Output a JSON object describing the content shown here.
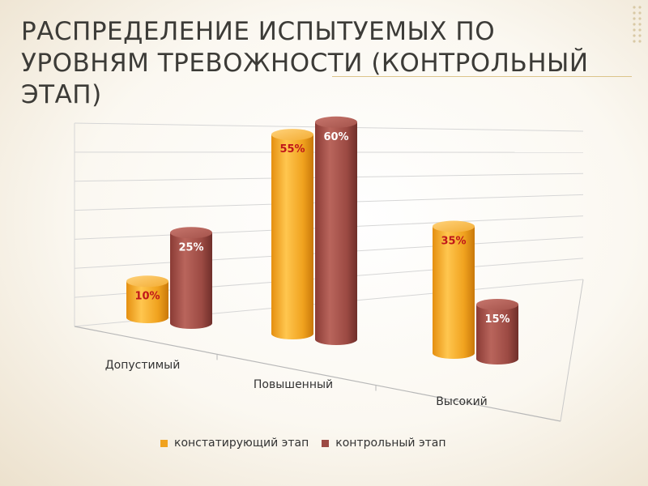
{
  "slide": {
    "title": "Распределение испытуемых по уровням тревожности (контрольный этап)"
  },
  "colors": {
    "series_a": "#f0a21e",
    "series_b": "#9c4a43",
    "label_a": "#c0161a",
    "label_b": "#ffffff",
    "text": "#3c3b37",
    "grid": "#d6d6d6"
  },
  "chart_data": {
    "type": "bar",
    "style": "3d-cylinders",
    "categories": [
      "Допустимый",
      "Повышенный",
      "Высокий"
    ],
    "series": [
      {
        "name": "констатирующий этап",
        "values": [
          10,
          55,
          35
        ],
        "labels": [
          "10%",
          "55%",
          "35%"
        ]
      },
      {
        "name": "контрольный этап",
        "values": [
          25,
          60,
          15
        ],
        "labels": [
          "25%",
          "60%",
          "15%"
        ]
      }
    ],
    "ylim": [
      0,
      70
    ],
    "grid": true,
    "legend_position": "bottom"
  },
  "legend": {
    "items": [
      "констатирующий этап",
      "контрольный этап"
    ]
  }
}
